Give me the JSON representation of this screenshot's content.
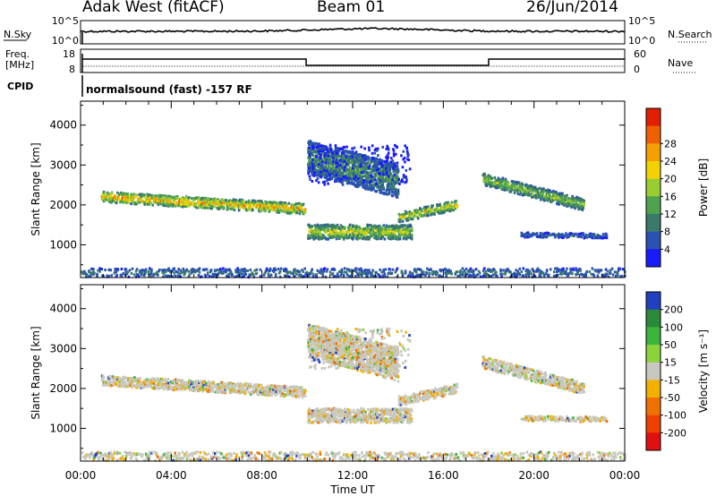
{
  "header": {
    "station": "Adak West (fitACF)",
    "beam": "Beam 01",
    "date": "26/Jun/2014"
  },
  "noise_panel": {
    "left_label": "N.Sky",
    "right_label": "N.Search",
    "left_ticks": [
      "10^5",
      "10^0"
    ],
    "right_ticks": [
      "10^5",
      "10^0"
    ]
  },
  "freq_panel": {
    "left_label_1": "Freq.",
    "left_label_2": "[MHz]",
    "right_label": "Nave",
    "left_ticks": [
      "18",
      "8"
    ],
    "right_ticks": [
      "60",
      "0"
    ]
  },
  "cpid": {
    "label": "CPID",
    "program": "normalsound (fast) -157 RF"
  },
  "x_axis": {
    "title": "Time UT",
    "ticks": [
      "00:00",
      "04:00",
      "08:00",
      "12:00",
      "16:00",
      "20:00",
      "00:00"
    ]
  },
  "chart_data": [
    {
      "type": "heatmap",
      "title": "Power",
      "ylabel": "Slant Range [km]",
      "xlabel": "Time UT",
      "x_range_hours": [
        0,
        24
      ],
      "ylim": [
        180,
        4600
      ],
      "y_ticks": [
        1000,
        2000,
        3000,
        4000
      ],
      "colorbar_label": "Power [dB]",
      "colorbar_ticks": [
        4,
        8,
        12,
        16,
        20,
        24,
        28
      ],
      "colorbar_colors": [
        "#1a1aff",
        "#2a52b0",
        "#3a7a6a",
        "#4fa24e",
        "#9acd32",
        "#f2d200",
        "#f5a000",
        "#f06000",
        "#e02000"
      ],
      "echo_regions": [
        {
          "start_h": 0.9,
          "end_h": 9.9,
          "range_start_km": 2200,
          "range_end_km": 1900,
          "thickness_km": 220,
          "peak_db": 26
        },
        {
          "start_h": 10.0,
          "end_h": 14.6,
          "range_start_km": 1320,
          "range_end_km": 1320,
          "thickness_km": 300,
          "peak_db": 20
        },
        {
          "start_h": 14.0,
          "end_h": 16.6,
          "range_start_km": 1680,
          "range_end_km": 2000,
          "thickness_km": 200,
          "peak_db": 22
        },
        {
          "start_h": 10.0,
          "end_h": 14.0,
          "range_start_km": 3200,
          "range_end_km": 2600,
          "thickness_km": 700,
          "peak_db": 14
        },
        {
          "start_h": 17.7,
          "end_h": 22.2,
          "range_start_km": 2650,
          "range_end_km": 2000,
          "thickness_km": 250,
          "peak_db": 18
        },
        {
          "start_h": 19.4,
          "end_h": 23.2,
          "range_start_km": 1250,
          "range_end_km": 1220,
          "thickness_km": 100,
          "peak_db": 8
        },
        {
          "start_h": 0.0,
          "end_h": 24.0,
          "range_start_km": 300,
          "range_end_km": 300,
          "thickness_km": 180,
          "peak_db": 10
        }
      ]
    },
    {
      "type": "heatmap",
      "title": "Velocity",
      "ylabel": "Slant Range [km]",
      "xlabel": "Time UT",
      "x_range_hours": [
        0,
        24
      ],
      "ylim": [
        180,
        4600
      ],
      "y_ticks": [
        1000,
        2000,
        3000,
        4000
      ],
      "colorbar_label": "Velocity [m s⁻¹]",
      "colorbar_ticks": [
        "200",
        "100",
        "50",
        "15",
        "-15",
        "-50",
        "-100",
        "-200"
      ],
      "colorbar_colors": [
        "#2040c0",
        "#2b8a3a",
        "#3cb43c",
        "#8bd33a",
        "#c8c8c0",
        "#f2b000",
        "#f07000",
        "#f04000",
        "#e01010"
      ],
      "dominant_velocity": "-15 to 15"
    }
  ]
}
